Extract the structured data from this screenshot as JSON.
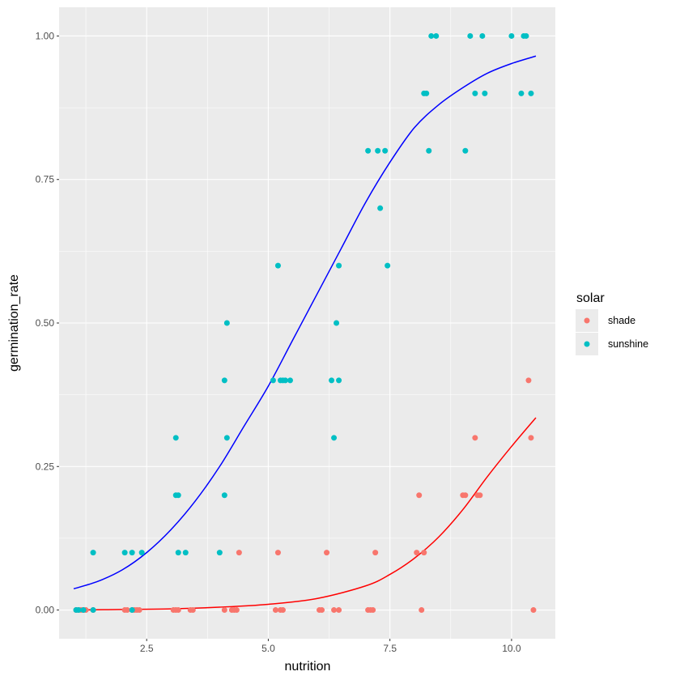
{
  "chart_data": {
    "type": "scatter",
    "xlabel": "nutrition",
    "ylabel": "germination_rate",
    "xlim": [
      0.7,
      10.9
    ],
    "ylim": [
      -0.05,
      1.05
    ],
    "x_ticks": [
      2.5,
      5.0,
      7.5,
      10.0
    ],
    "x_tick_labels": [
      "2.5",
      "5.0",
      "7.5",
      "10.0"
    ],
    "y_ticks": [
      0.0,
      0.25,
      0.5,
      0.75,
      1.0
    ],
    "y_tick_labels": [
      "0.00",
      "0.25",
      "0.50",
      "0.75",
      "1.00"
    ],
    "grid": true,
    "legend": {
      "title": "solar",
      "position": "right"
    },
    "series": [
      {
        "name": "shade",
        "color": "#F8766D",
        "points": [
          [
            1.05,
            0.0
          ],
          [
            1.1,
            0.0
          ],
          [
            1.15,
            0.0
          ],
          [
            1.2,
            0.0
          ],
          [
            1.25,
            0.0
          ],
          [
            1.4,
            0.0
          ],
          [
            2.05,
            0.0
          ],
          [
            2.1,
            0.0
          ],
          [
            2.2,
            0.0
          ],
          [
            2.25,
            0.0
          ],
          [
            2.3,
            0.0
          ],
          [
            2.35,
            0.0
          ],
          [
            3.05,
            0.0
          ],
          [
            3.1,
            0.0
          ],
          [
            3.15,
            0.0
          ],
          [
            3.4,
            0.0
          ],
          [
            3.45,
            0.0
          ],
          [
            4.1,
            0.0
          ],
          [
            4.25,
            0.0
          ],
          [
            4.3,
            0.0
          ],
          [
            4.35,
            0.0
          ],
          [
            4.4,
            0.1
          ],
          [
            5.15,
            0.0
          ],
          [
            5.2,
            0.1
          ],
          [
            5.25,
            0.0
          ],
          [
            5.3,
            0.0
          ],
          [
            6.05,
            0.0
          ],
          [
            6.1,
            0.0
          ],
          [
            6.2,
            0.1
          ],
          [
            6.35,
            0.0
          ],
          [
            6.45,
            0.0
          ],
          [
            7.05,
            0.0
          ],
          [
            7.1,
            0.0
          ],
          [
            7.15,
            0.0
          ],
          [
            7.2,
            0.1
          ],
          [
            8.05,
            0.1
          ],
          [
            8.1,
            0.2
          ],
          [
            8.15,
            0.0
          ],
          [
            8.2,
            0.1
          ],
          [
            9.0,
            0.2
          ],
          [
            9.05,
            0.2
          ],
          [
            9.25,
            0.3
          ],
          [
            9.3,
            0.2
          ],
          [
            9.35,
            0.2
          ],
          [
            10.35,
            0.4
          ],
          [
            10.4,
            0.3
          ],
          [
            10.45,
            0.0
          ]
        ],
        "fit": [
          [
            1.1,
            0.0
          ],
          [
            2.0,
            0.001
          ],
          [
            3.0,
            0.002
          ],
          [
            4.0,
            0.005
          ],
          [
            5.0,
            0.01
          ],
          [
            6.0,
            0.02
          ],
          [
            7.0,
            0.042
          ],
          [
            7.5,
            0.062
          ],
          [
            8.0,
            0.09
          ],
          [
            8.5,
            0.127
          ],
          [
            9.0,
            0.175
          ],
          [
            9.5,
            0.232
          ],
          [
            10.0,
            0.285
          ],
          [
            10.5,
            0.335
          ]
        ]
      },
      {
        "name": "sunshine",
        "color": "#00BFC4",
        "points": [
          [
            1.05,
            0.0
          ],
          [
            1.1,
            0.0
          ],
          [
            1.2,
            0.0
          ],
          [
            1.4,
            0.1
          ],
          [
            1.4,
            0.0
          ],
          [
            2.05,
            0.1
          ],
          [
            2.2,
            0.1
          ],
          [
            2.2,
            0.0
          ],
          [
            2.4,
            0.1
          ],
          [
            3.1,
            0.3
          ],
          [
            3.1,
            0.2
          ],
          [
            3.15,
            0.2
          ],
          [
            3.15,
            0.1
          ],
          [
            3.3,
            0.1
          ],
          [
            4.0,
            0.1
          ],
          [
            4.1,
            0.4
          ],
          [
            4.1,
            0.2
          ],
          [
            4.15,
            0.5
          ],
          [
            4.15,
            0.3
          ],
          [
            5.1,
            0.4
          ],
          [
            5.2,
            0.6
          ],
          [
            5.25,
            0.4
          ],
          [
            5.3,
            0.4
          ],
          [
            5.35,
            0.4
          ],
          [
            5.45,
            0.4
          ],
          [
            6.3,
            0.4
          ],
          [
            6.35,
            0.3
          ],
          [
            6.4,
            0.5
          ],
          [
            6.45,
            0.6
          ],
          [
            6.45,
            0.4
          ],
          [
            7.05,
            0.8
          ],
          [
            7.25,
            0.8
          ],
          [
            7.3,
            0.7
          ],
          [
            7.4,
            0.8
          ],
          [
            7.45,
            0.6
          ],
          [
            8.2,
            0.9
          ],
          [
            8.25,
            0.9
          ],
          [
            8.3,
            0.8
          ],
          [
            8.35,
            1.0
          ],
          [
            8.45,
            1.0
          ],
          [
            9.05,
            0.8
          ],
          [
            9.15,
            1.0
          ],
          [
            9.25,
            0.9
          ],
          [
            9.4,
            1.0
          ],
          [
            9.45,
            0.9
          ],
          [
            10.0,
            1.0
          ],
          [
            10.2,
            0.9
          ],
          [
            10.25,
            1.0
          ],
          [
            10.3,
            1.0
          ],
          [
            10.4,
            0.9
          ]
        ],
        "fit": [
          [
            1.0,
            0.037
          ],
          [
            1.5,
            0.05
          ],
          [
            2.0,
            0.07
          ],
          [
            2.5,
            0.1
          ],
          [
            3.0,
            0.14
          ],
          [
            3.5,
            0.19
          ],
          [
            4.0,
            0.25
          ],
          [
            4.5,
            0.32
          ],
          [
            5.0,
            0.39
          ],
          [
            5.5,
            0.47
          ],
          [
            6.0,
            0.55
          ],
          [
            6.5,
            0.63
          ],
          [
            7.0,
            0.71
          ],
          [
            7.5,
            0.78
          ],
          [
            8.0,
            0.84
          ],
          [
            8.5,
            0.88
          ],
          [
            9.0,
            0.91
          ],
          [
            9.5,
            0.935
          ],
          [
            10.0,
            0.952
          ],
          [
            10.5,
            0.965
          ]
        ]
      }
    ],
    "fit_colors": {
      "shade": "#FF0000",
      "sunshine": "#0000FF"
    }
  }
}
